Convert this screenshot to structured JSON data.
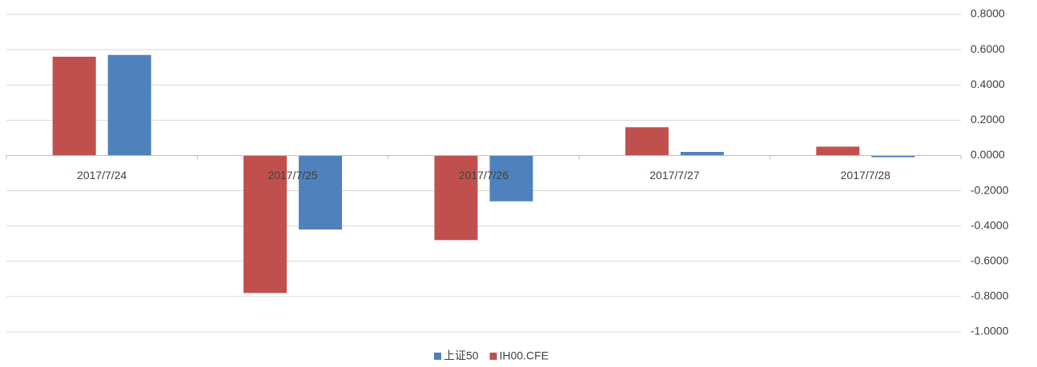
{
  "chart_data": {
    "type": "bar",
    "categories": [
      "2017/7/24",
      "2017/7/25",
      "2017/7/26",
      "2017/7/27",
      "2017/7/28"
    ],
    "series": [
      {
        "name": "上证50",
        "color": "#4f81bd",
        "values": [
          0.57,
          -0.42,
          -0.26,
          0.02,
          -0.01
        ]
      },
      {
        "name": "IH00.CFE",
        "color": "#c0504d",
        "values": [
          0.56,
          -0.78,
          -0.48,
          0.16,
          0.05
        ]
      }
    ],
    "ylim": [
      -1.0,
      0.8
    ],
    "yticks": [
      {
        "value": 0.8,
        "label": "0.8000"
      },
      {
        "value": 0.6,
        "label": "0.6000"
      },
      {
        "value": 0.4,
        "label": "0.4000"
      },
      {
        "value": 0.2,
        "label": "0.2000"
      },
      {
        "value": 0,
        "label": "0.0000"
      },
      {
        "value": -0.2,
        "label": "-0.2000"
      },
      {
        "value": -0.4,
        "label": "-0.4000"
      },
      {
        "value": -0.6,
        "label": "-0.6000"
      },
      {
        "value": -0.8,
        "label": "-0.8000"
      },
      {
        "value": -1.0,
        "label": "-1.0000"
      }
    ],
    "grid": true,
    "legend": "bottom"
  }
}
